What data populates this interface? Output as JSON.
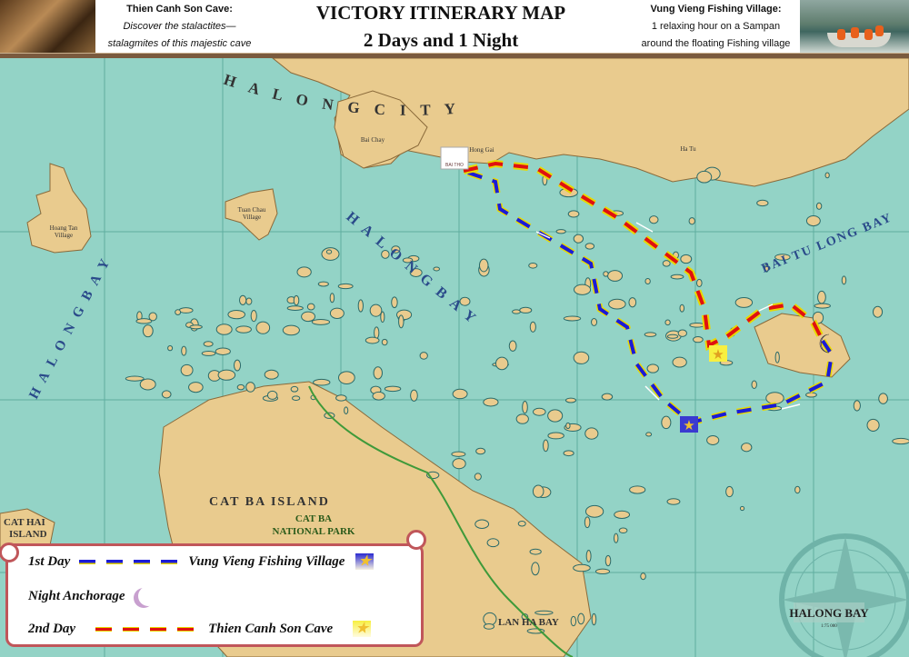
{
  "header": {
    "title": "VICTORY ITINERARY MAP",
    "subtitle": "2 Days and 1 Night",
    "left_caption": {
      "heading": "Thien Canh Son Cave:",
      "line1": "Discover the stalactites—",
      "line2": "stalagmites of this majestic cave"
    },
    "right_caption": {
      "heading": "Vung Vieng Fishing Village:",
      "line1": "1 relaxing hour on a Sampan",
      "line2": "around the floating Fishing village"
    }
  },
  "map": {
    "colors": {
      "water": "#93d3c6",
      "land": "#e9cb8e",
      "route_day1": "#1b1bd6",
      "route_day2": "#e01010",
      "route_edge": "#e8d800"
    },
    "labels": {
      "ha_long_city": "H A L O N G   C I T Y",
      "ha_long_bay_center": "H A   L O N G   B A Y",
      "ha_long_bay_left": "H A   L O N G   B A Y",
      "bai_tu_long_bay": "BAI TU LONG BAY",
      "cat_ba_island": "CAT BA ISLAND",
      "cat_ba_national_park_1": "CAT BA",
      "cat_ba_national_park_2": "NATIONAL PARK",
      "cat_hai_island_1": "CAT HAI",
      "cat_hai_island_2": "ISLAND",
      "lan_ha_bay": "LAN HA BAY",
      "bai_chay": "Bai Chay",
      "hong_gai": "Hong Gai",
      "ha_tu": "Ha Tu",
      "hoang_tan_1": "Hoang Tan",
      "hoang_tan_2": "Village",
      "tuan_chau_1": "Tuan Chau",
      "tuan_chau_2": "Village",
      "bai_tho": "BAI THO"
    },
    "cartouche": {
      "title": "HALONG BAY",
      "scale": "1:75 000"
    }
  },
  "legend": {
    "day1_label": "1st Day",
    "day1_destination": "Vung Vieng Fishing Village",
    "night_label": "Night Anchorage",
    "day2_label": "2nd Day",
    "day2_destination": "Thien Canh Son Cave"
  }
}
